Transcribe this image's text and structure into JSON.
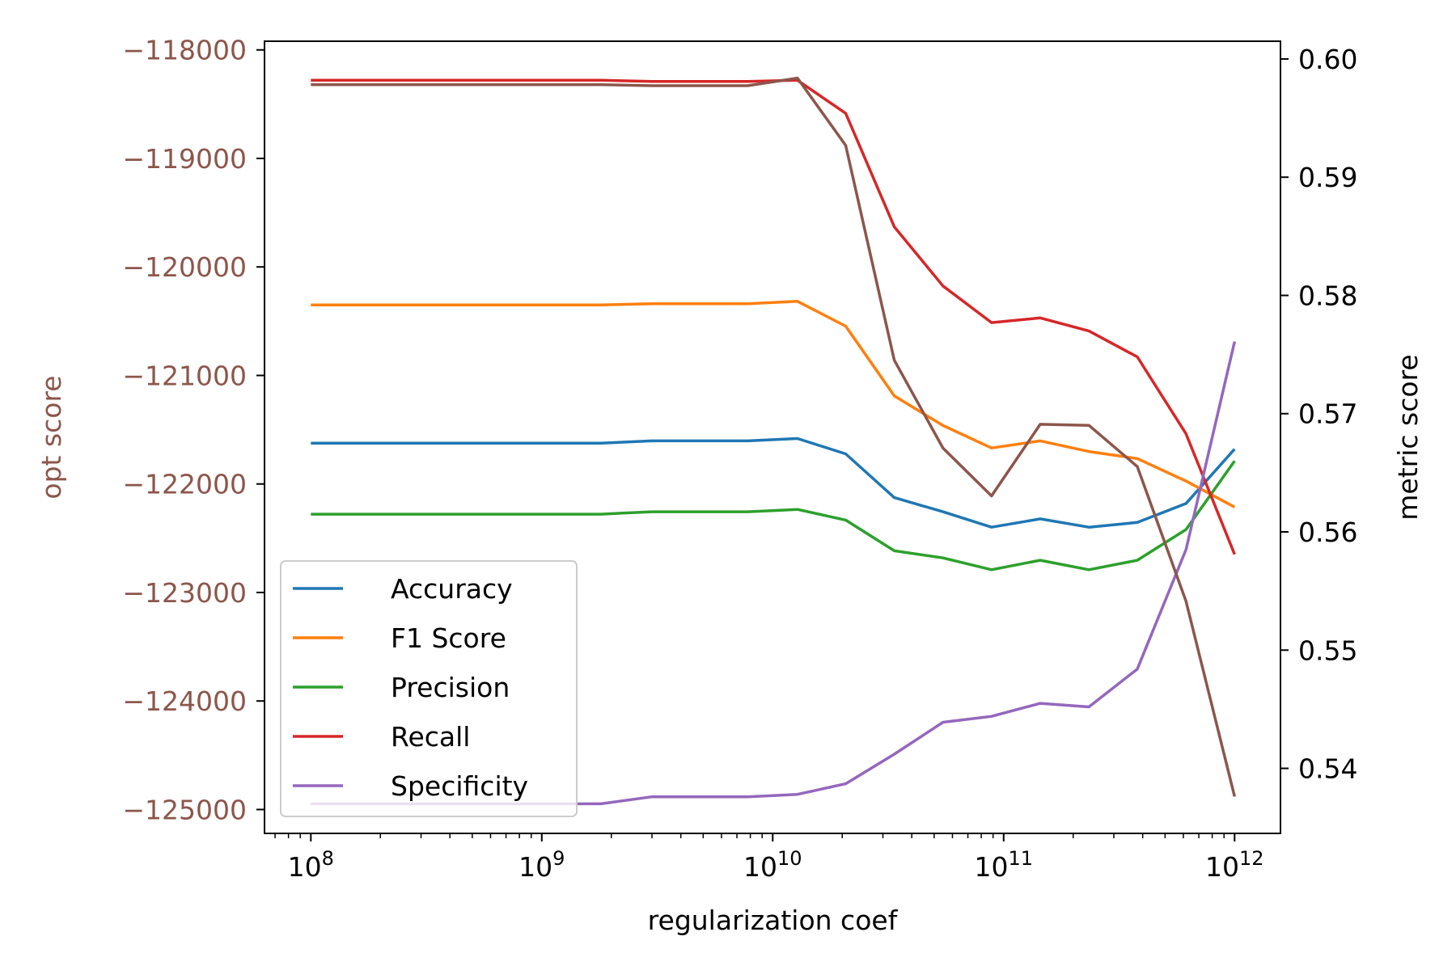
{
  "chart_data": {
    "type": "line",
    "xlabel": "regularization coef",
    "x_scale": "log",
    "x_ticks": [
      {
        "value": 100000000.0,
        "base": "10",
        "exp": "8"
      },
      {
        "value": 1000000000.0,
        "base": "10",
        "exp": "9"
      },
      {
        "value": 10000000000.0,
        "base": "10",
        "exp": "10"
      },
      {
        "value": 100000000000.0,
        "base": "10",
        "exp": "11"
      },
      {
        "value": 1000000000000.0,
        "base": "10",
        "exp": "12"
      }
    ],
    "xlim": [
      63000000.0,
      1580000000000.0
    ],
    "left_axis": {
      "label": "opt score",
      "color": "#8c564b",
      "ylim": [
        -125220,
        -117920
      ],
      "ticks": [
        -118000,
        -119000,
        -120000,
        -121000,
        -122000,
        -123000,
        -124000,
        -125000
      ],
      "tick_labels": [
        "−118000",
        "−119000",
        "−120000",
        "−121000",
        "−122000",
        "−123000",
        "−124000",
        "−125000"
      ]
    },
    "right_axis": {
      "label": "metric score",
      "color": "#000000",
      "ylim": [
        0.5345,
        0.6015
      ],
      "ticks": [
        0.6,
        0.59,
        0.58,
        0.57,
        0.56,
        0.55,
        0.54
      ],
      "tick_labels": [
        "0.60",
        "0.59",
        "0.58",
        "0.57",
        "0.56",
        "0.55",
        "0.54"
      ]
    },
    "x": [
      100000000.0,
      1800000000.0,
      3000000000.0,
      7800000000.0,
      12800000000.0,
      20700000000.0,
      33600000000.0,
      54600000000.0,
      88600000000.0,
      144000000000.0,
      234000000000.0,
      379000000000.0,
      616000000000.0,
      1000000000000.0
    ],
    "series": [
      {
        "name": "Accuracy",
        "axis": "right",
        "color": "#1f77b4",
        "values": [
          0.5675,
          0.5675,
          0.5677,
          0.5677,
          0.5679,
          0.5666,
          0.5629,
          0.5617,
          0.5604,
          0.5611,
          0.5604,
          0.5608,
          0.5624,
          0.567
        ]
      },
      {
        "name": "F1 Score",
        "axis": "right",
        "color": "#ff7f0e",
        "values": [
          0.5792,
          0.5792,
          0.5793,
          0.5793,
          0.5795,
          0.5774,
          0.5715,
          0.569,
          0.5671,
          0.5677,
          0.5668,
          0.5662,
          0.5643,
          0.5621
        ]
      },
      {
        "name": "Precision",
        "axis": "right",
        "color": "#2ca02c",
        "values": [
          0.5615,
          0.5615,
          0.5617,
          0.5617,
          0.5619,
          0.561,
          0.5584,
          0.5578,
          0.5568,
          0.5576,
          0.5568,
          0.5576,
          0.5602,
          0.566
        ]
      },
      {
        "name": "Recall",
        "axis": "right",
        "color": "#d62728",
        "values": [
          0.5982,
          0.5982,
          0.5981,
          0.5981,
          0.5982,
          0.5954,
          0.5858,
          0.5808,
          0.5777,
          0.5781,
          0.577,
          0.5748,
          0.5683,
          0.5581
        ]
      },
      {
        "name": "Specificity",
        "axis": "right",
        "color": "#9467bd",
        "values": [
          0.537,
          0.537,
          0.5376,
          0.5376,
          0.5378,
          0.5387,
          0.5412,
          0.5439,
          0.5444,
          0.5455,
          0.5452,
          0.5484,
          0.5585,
          0.5761
        ]
      },
      {
        "name": "opt score",
        "axis": "left",
        "color": "#8c564b",
        "values": [
          -118320,
          -118320,
          -118330,
          -118330,
          -118260,
          -118880,
          -120860,
          -121670,
          -122110,
          -121450,
          -121460,
          -121840,
          -123080,
          -124880
        ]
      }
    ],
    "legend": {
      "position": "lower-left",
      "entries": [
        "Accuracy",
        "F1 Score",
        "Precision",
        "Recall",
        "Specificity"
      ]
    }
  }
}
